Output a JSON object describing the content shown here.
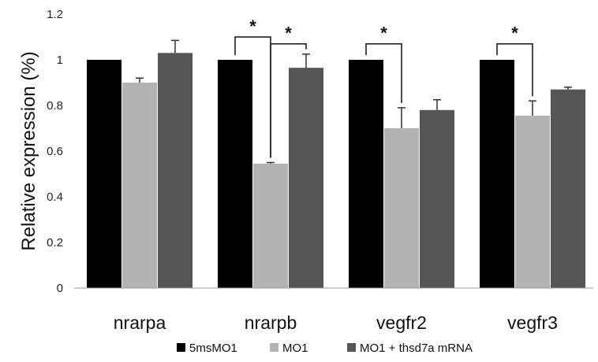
{
  "chart_data": {
    "type": "bar",
    "title": "",
    "xlabel": "",
    "ylabel": "Relative expression (%)",
    "ylim": [
      0,
      1.2
    ],
    "yticks": [
      "0",
      "0.2",
      "0.4",
      "0.6",
      "0.8",
      "1",
      "1.2"
    ],
    "grid": false,
    "legend_position": "bottom",
    "categories": [
      "nrarpa",
      "nrarpb",
      "vegfr2",
      "vegfr3"
    ],
    "series": [
      {
        "name": "5msMO1",
        "color": "#000000",
        "values": [
          1.0,
          1.0,
          1.0,
          1.0
        ],
        "errors": [
          0,
          0,
          0,
          0
        ]
      },
      {
        "name": "MO1",
        "color": "#b3b3b3",
        "values": [
          0.9,
          0.545,
          0.7,
          0.755
        ],
        "errors": [
          0.02,
          0.005,
          0.09,
          0.065
        ]
      },
      {
        "name": "MO1 + thsd7a mRNA",
        "color": "#555555",
        "values": [
          1.03,
          0.965,
          0.78,
          0.87
        ],
        "errors": [
          0.055,
          0.06,
          0.045,
          0.01
        ]
      }
    ],
    "significance": [
      {
        "category": "nrarpb",
        "from_series": 0,
        "to_series": 1,
        "label": "*",
        "level": 1.1
      },
      {
        "category": "nrarpb",
        "from_series": 1,
        "to_series": 2,
        "label": "*",
        "level": 1.07
      },
      {
        "category": "vegfr2",
        "from_series": 0,
        "to_series": 1,
        "label": "*",
        "level": 1.07
      },
      {
        "category": "vegfr3",
        "from_series": 0,
        "to_series": 1,
        "label": "*",
        "level": 1.07
      }
    ]
  }
}
